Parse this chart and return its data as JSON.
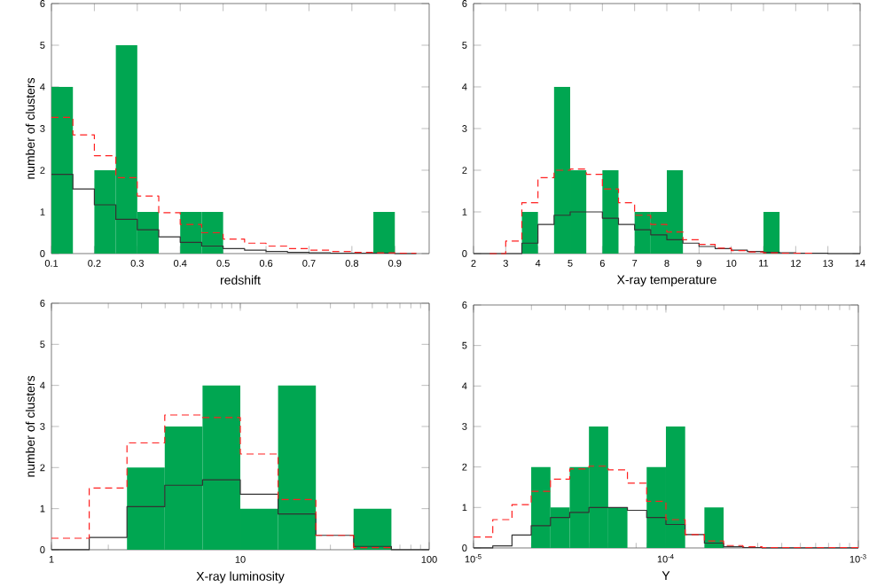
{
  "chart_data": [
    {
      "type": "histogram",
      "xlabel": "redshift",
      "ylabel": "number of clusters",
      "xlim": [
        0.1,
        0.98
      ],
      "ylim": [
        0,
        6
      ],
      "xticks": [
        0.1,
        0.2,
        0.3,
        0.4,
        0.5,
        0.6,
        0.7,
        0.8,
        0.9
      ],
      "yticks": [
        0,
        1,
        2,
        3,
        4,
        5,
        6
      ],
      "series": [
        {
          "type": "histogram",
          "color": "#00a651",
          "bins": [
            0.1,
            0.15,
            0.2,
            0.25,
            0.3,
            0.35,
            0.4,
            0.45,
            0.5,
            0.55,
            0.6,
            0.65,
            0.7,
            0.75,
            0.8,
            0.85,
            0.9
          ],
          "values": [
            4,
            0,
            2,
            5,
            1,
            0,
            1,
            1,
            0,
            0,
            0,
            0,
            0,
            0,
            0,
            1
          ]
        },
        {
          "type": "step",
          "color": "#333333",
          "line_style": "solid",
          "x": [
            0.1,
            0.15,
            0.2,
            0.25,
            0.3,
            0.35,
            0.4,
            0.45,
            0.5,
            0.55,
            0.6,
            0.65,
            0.7,
            0.75,
            0.8,
            0.85,
            0.9,
            0.95
          ],
          "values": [
            1.9,
            1.55,
            1.17,
            0.82,
            0.57,
            0.4,
            0.27,
            0.18,
            0.12,
            0.08,
            0.05,
            0.03,
            0.02,
            0.01,
            0.01,
            0.01,
            0,
            0
          ]
        },
        {
          "type": "step",
          "color": "#ff2020",
          "line_style": "dashed",
          "x": [
            0.1,
            0.15,
            0.2,
            0.25,
            0.3,
            0.35,
            0.4,
            0.45,
            0.5,
            0.55,
            0.6,
            0.65,
            0.7,
            0.75,
            0.8,
            0.85,
            0.9,
            0.95
          ],
          "values": [
            3.27,
            2.85,
            2.35,
            1.82,
            1.38,
            0.98,
            0.7,
            0.5,
            0.35,
            0.25,
            0.18,
            0.12,
            0.08,
            0.05,
            0.03,
            0.02,
            0.01,
            0.01
          ]
        }
      ]
    },
    {
      "type": "histogram",
      "xlabel": "X-ray temperature",
      "xlim": [
        2,
        14
      ],
      "ylim": [
        0,
        6
      ],
      "xticks": [
        2,
        3,
        4,
        5,
        6,
        7,
        8,
        9,
        10,
        11,
        12,
        13,
        14
      ],
      "yticks": [
        0,
        1,
        2,
        3,
        4,
        5,
        6
      ],
      "series": [
        {
          "type": "histogram",
          "color": "#00a651",
          "bins": [
            3.5,
            4,
            4.5,
            5,
            5.5,
            6,
            6.5,
            7,
            7.5,
            8,
            8.5,
            9,
            9.5,
            10,
            10.5,
            11,
            11.5
          ],
          "values": [
            1,
            0,
            4,
            2,
            0,
            2,
            0,
            1,
            1,
            2,
            0,
            0,
            0,
            0,
            0,
            1
          ]
        },
        {
          "type": "step",
          "color": "#333333",
          "line_style": "solid",
          "x": [
            2,
            2.5,
            3,
            3.5,
            4,
            4.5,
            5,
            5.5,
            6,
            6.5,
            7,
            7.5,
            8,
            8.5,
            9,
            9.5,
            10,
            10.5,
            11,
            11.5,
            12,
            12.5,
            13,
            13.5,
            14
          ],
          "values": [
            0,
            0,
            0,
            0.25,
            0.7,
            0.92,
            1.0,
            1.0,
            0.85,
            0.7,
            0.57,
            0.45,
            0.33,
            0.25,
            0.17,
            0.12,
            0.08,
            0.05,
            0.03,
            0.02,
            0.01,
            0.01,
            0,
            0,
            0
          ]
        },
        {
          "type": "step",
          "color": "#ff2020",
          "line_style": "dashed",
          "x": [
            2.5,
            3,
            3.5,
            4,
            4.5,
            5,
            5.5,
            6,
            6.5,
            7,
            7.5,
            8,
            8.5,
            9,
            9.5,
            10,
            10.5,
            11,
            11.5,
            12,
            12.5
          ],
          "values": [
            0,
            0.3,
            1.22,
            1.82,
            2.0,
            2.03,
            1.9,
            1.55,
            1.22,
            0.92,
            0.7,
            0.52,
            0.33,
            0.22,
            0.13,
            0.07,
            0.04,
            0.02,
            0.01,
            0.01,
            0
          ]
        }
      ]
    },
    {
      "type": "histogram",
      "xlabel": "X-ray luminosity",
      "ylabel": "number of clusters",
      "log": "x",
      "xlim": [
        1,
        100
      ],
      "ylim": [
        0,
        6
      ],
      "xticks": [
        1,
        10,
        100
      ],
      "yticks": [
        0,
        1,
        2,
        3,
        4,
        5,
        6
      ],
      "series": [
        {
          "type": "histogram",
          "color": "#00a651",
          "bins": [
            2.512,
            3.981,
            6.31,
            10,
            15.85,
            25.12,
            39.81,
            63.1
          ],
          "values": [
            2,
            3,
            4,
            1,
            4,
            0,
            1
          ]
        },
        {
          "type": "step",
          "color": "#333333",
          "line_style": "solid",
          "x": [
            1,
            1.585,
            2.512,
            3.981,
            6.31,
            10,
            15.85,
            25.12,
            39.81,
            63.1,
            100
          ],
          "values": [
            0,
            0.3,
            1.05,
            1.57,
            1.7,
            1.35,
            0.87,
            0.35,
            0.08,
            0,
            0
          ]
        },
        {
          "type": "step",
          "color": "#ff2020",
          "line_style": "dashed",
          "x": [
            1,
            1.585,
            2.512,
            3.981,
            6.31,
            10,
            15.85,
            25.12,
            39.81,
            63.1
          ],
          "values": [
            0.28,
            1.5,
            2.6,
            3.28,
            3.22,
            2.33,
            1.22,
            0.35,
            0.05,
            0
          ]
        }
      ]
    },
    {
      "type": "histogram",
      "xlabel": "Y",
      "log": "x",
      "xlim": [
        1e-05,
        0.001
      ],
      "ylim": [
        0,
        6
      ],
      "xticks": [
        {
          "value": 1e-05,
          "label": "10$^{-5}$"
        },
        {
          "value": 0.0001,
          "label": "10$^{-4}$"
        },
        {
          "value": 0.001,
          "label": "10$^{-3}$"
        }
      ],
      "yticks": [
        0,
        1,
        2,
        3,
        4,
        5,
        6
      ],
      "series": [
        {
          "type": "histogram",
          "color": "#00a651",
          "bins": [
            1.995e-05,
            2.512e-05,
            3.162e-05,
            3.981e-05,
            5.012e-05,
            6.31e-05,
            7.943e-05,
            0.0001,
            0.0001259,
            0.0001585,
            0.0001995
          ],
          "values": [
            2,
            1,
            2,
            3,
            1,
            0,
            2,
            3,
            0,
            1
          ]
        },
        {
          "type": "step",
          "color": "#333333",
          "line_style": "solid",
          "x": [
            1e-05,
            1.259e-05,
            1.585e-05,
            1.995e-05,
            2.512e-05,
            3.162e-05,
            3.981e-05,
            5.012e-05,
            6.31e-05,
            7.943e-05,
            0.0001,
            0.0001259,
            0.0001585,
            0.0001995,
            0.0002512,
            0.0003162,
            0.001
          ],
          "values": [
            0,
            0.05,
            0.32,
            0.55,
            0.75,
            0.88,
            1.0,
            1.0,
            0.93,
            0.75,
            0.58,
            0.33,
            0.12,
            0.03,
            0.01,
            0,
            0
          ]
        },
        {
          "type": "step",
          "color": "#ff2020",
          "line_style": "dashed",
          "x": [
            1e-05,
            1.259e-05,
            1.585e-05,
            1.995e-05,
            2.512e-05,
            3.162e-05,
            3.981e-05,
            5.012e-05,
            6.31e-05,
            7.943e-05,
            0.0001,
            0.0001259,
            0.0001585,
            0.0001995,
            0.0002512,
            0.0003162,
            0.001
          ],
          "values": [
            0.27,
            0.7,
            1.07,
            1.4,
            1.7,
            1.95,
            2.02,
            1.93,
            1.6,
            1.15,
            0.7,
            0.33,
            0.17,
            0.06,
            0.03,
            0.01,
            0.01
          ]
        }
      ]
    }
  ]
}
